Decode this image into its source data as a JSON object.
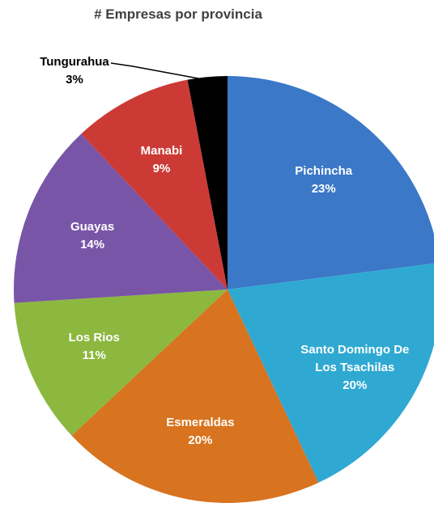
{
  "chart_data": {
    "type": "pie",
    "title": "# Empresas por provincia",
    "categories": [
      "Pichincha",
      "Santo Domingo De Los Tsachilas",
      "Esmeraldas",
      "Los Rios",
      "Guayas",
      "Manabi",
      "Tungurahua"
    ],
    "values": [
      23,
      20,
      20,
      11,
      14,
      9,
      3
    ],
    "value_labels": [
      "23%",
      "20%",
      "20%",
      "11%",
      "14%",
      "9%",
      "3%"
    ],
    "colors": [
      "#3b78c8",
      "#2fa9d1",
      "#d8731f",
      "#8cb83f",
      "#7955a8",
      "#cc3a35",
      "#000000"
    ]
  }
}
